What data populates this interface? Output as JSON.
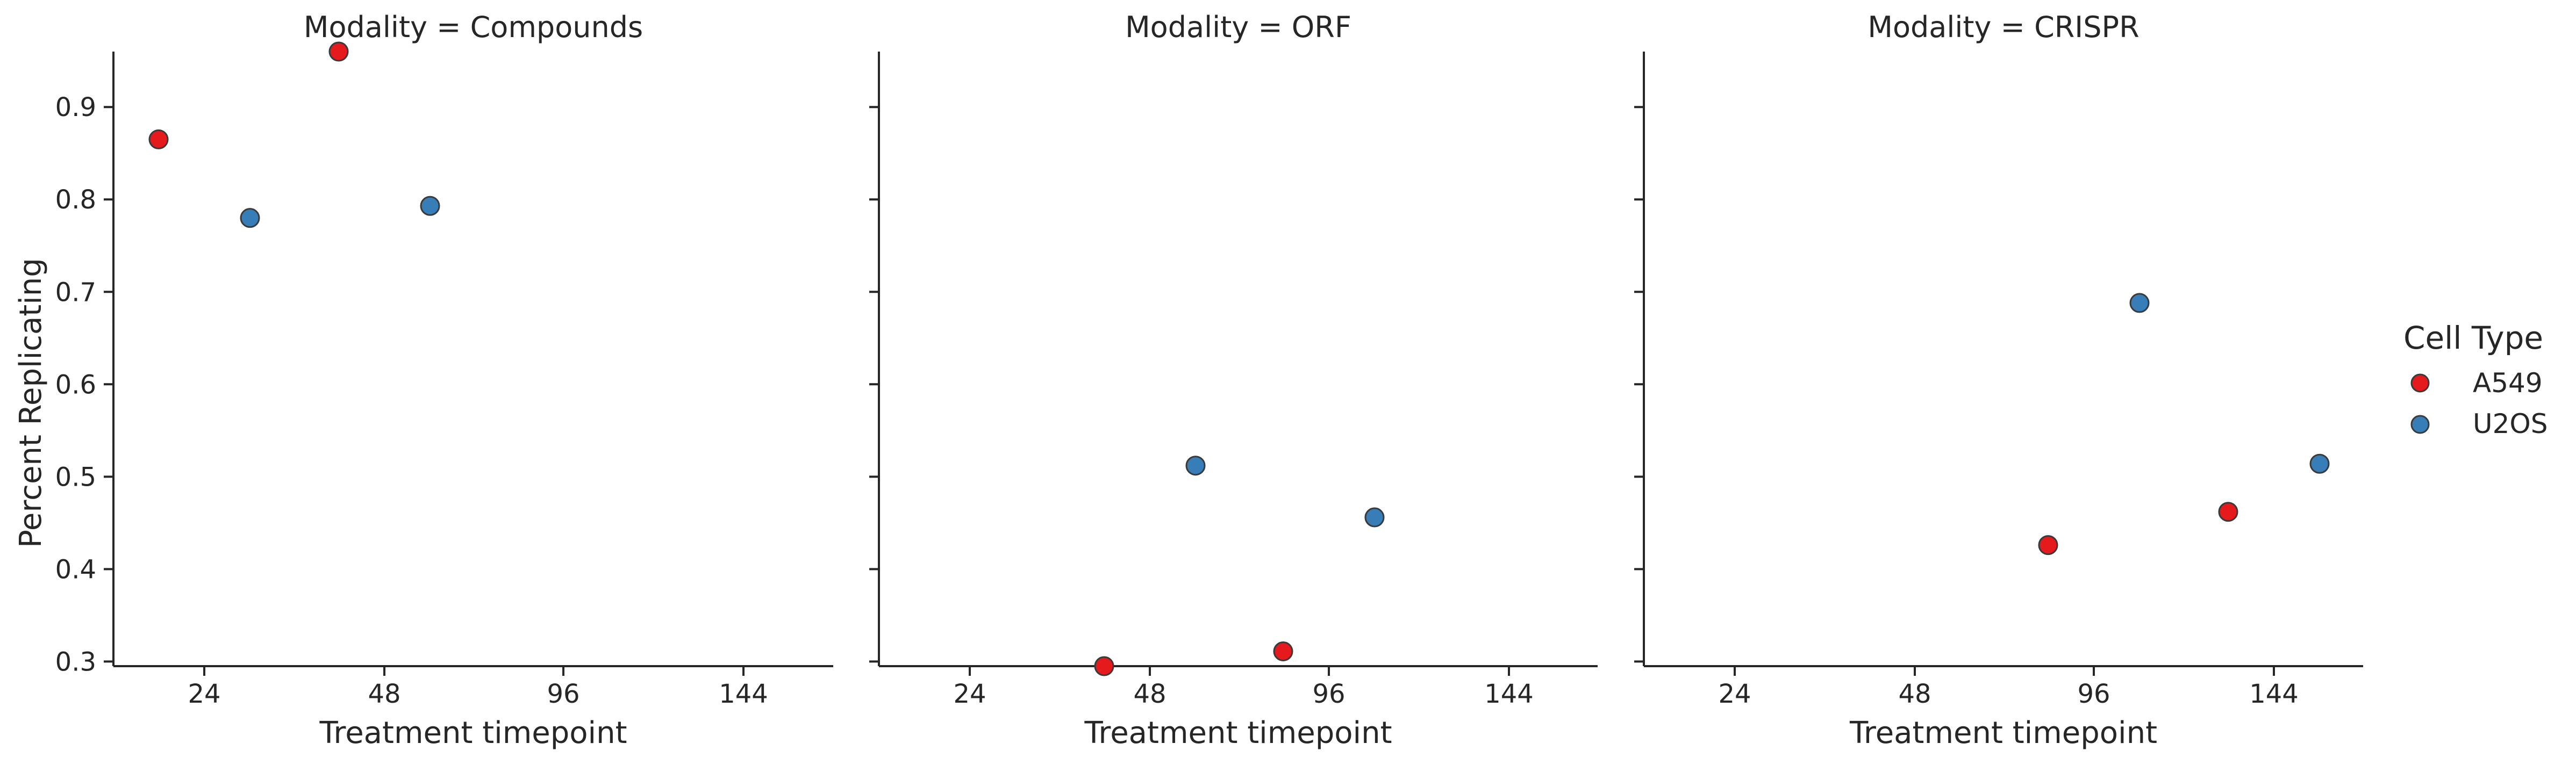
{
  "figure": {
    "ylabel": "Percent Replicating",
    "legend_title": "Cell Type",
    "legend_items": [
      {
        "label": "A549",
        "color": "#e41a1c"
      },
      {
        "label": "U2OS",
        "color": "#377eb8"
      }
    ]
  },
  "chart_data": [
    {
      "type": "scatter",
      "title": "Modality = Compounds",
      "xlabel": "Treatment timepoint",
      "ylabel": "Percent Replicating",
      "xticks": [
        "24",
        "48",
        "96",
        "144"
      ],
      "yticks": [
        "0.3",
        "0.4",
        "0.5",
        "0.6",
        "0.7",
        "0.8",
        "0.9"
      ],
      "ylim": [
        0.295,
        0.96
      ],
      "x_scale": "categorical with hue dodge",
      "series": [
        {
          "name": "A549",
          "color": "#e41a1c",
          "points": [
            {
              "x": "24",
              "y": 0.865
            },
            {
              "x": "48",
              "y": 0.96
            }
          ]
        },
        {
          "name": "U2OS",
          "color": "#377eb8",
          "points": [
            {
              "x": "24",
              "y": 0.78
            },
            {
              "x": "48",
              "y": 0.793
            }
          ]
        }
      ]
    },
    {
      "type": "scatter",
      "title": "Modality = ORF",
      "xlabel": "Treatment timepoint",
      "ylabel": "",
      "xticks": [
        "24",
        "48",
        "96",
        "144"
      ],
      "yticks": [
        "0.3",
        "0.4",
        "0.5",
        "0.6",
        "0.7",
        "0.8",
        "0.9"
      ],
      "ylim": [
        0.295,
        0.96
      ],
      "x_scale": "categorical with hue dodge",
      "series": [
        {
          "name": "A549",
          "color": "#e41a1c",
          "points": [
            {
              "x": "48",
              "y": 0.295
            },
            {
              "x": "96",
              "y": 0.311
            }
          ]
        },
        {
          "name": "U2OS",
          "color": "#377eb8",
          "points": [
            {
              "x": "48",
              "y": 0.512
            },
            {
              "x": "96",
              "y": 0.456
            }
          ]
        }
      ]
    },
    {
      "type": "scatter",
      "title": "Modality = CRISPR",
      "xlabel": "Treatment timepoint",
      "ylabel": "",
      "xticks": [
        "24",
        "48",
        "96",
        "144"
      ],
      "yticks": [
        "0.3",
        "0.4",
        "0.5",
        "0.6",
        "0.7",
        "0.8",
        "0.9"
      ],
      "ylim": [
        0.295,
        0.96
      ],
      "x_scale": "categorical with hue dodge",
      "series": [
        {
          "name": "A549",
          "color": "#e41a1c",
          "points": [
            {
              "x": "96",
              "y": 0.426
            },
            {
              "x": "144",
              "y": 0.462
            }
          ]
        },
        {
          "name": "U2OS",
          "color": "#377eb8",
          "points": [
            {
              "x": "96",
              "y": 0.688
            },
            {
              "x": "144",
              "y": 0.514
            }
          ]
        }
      ]
    }
  ]
}
